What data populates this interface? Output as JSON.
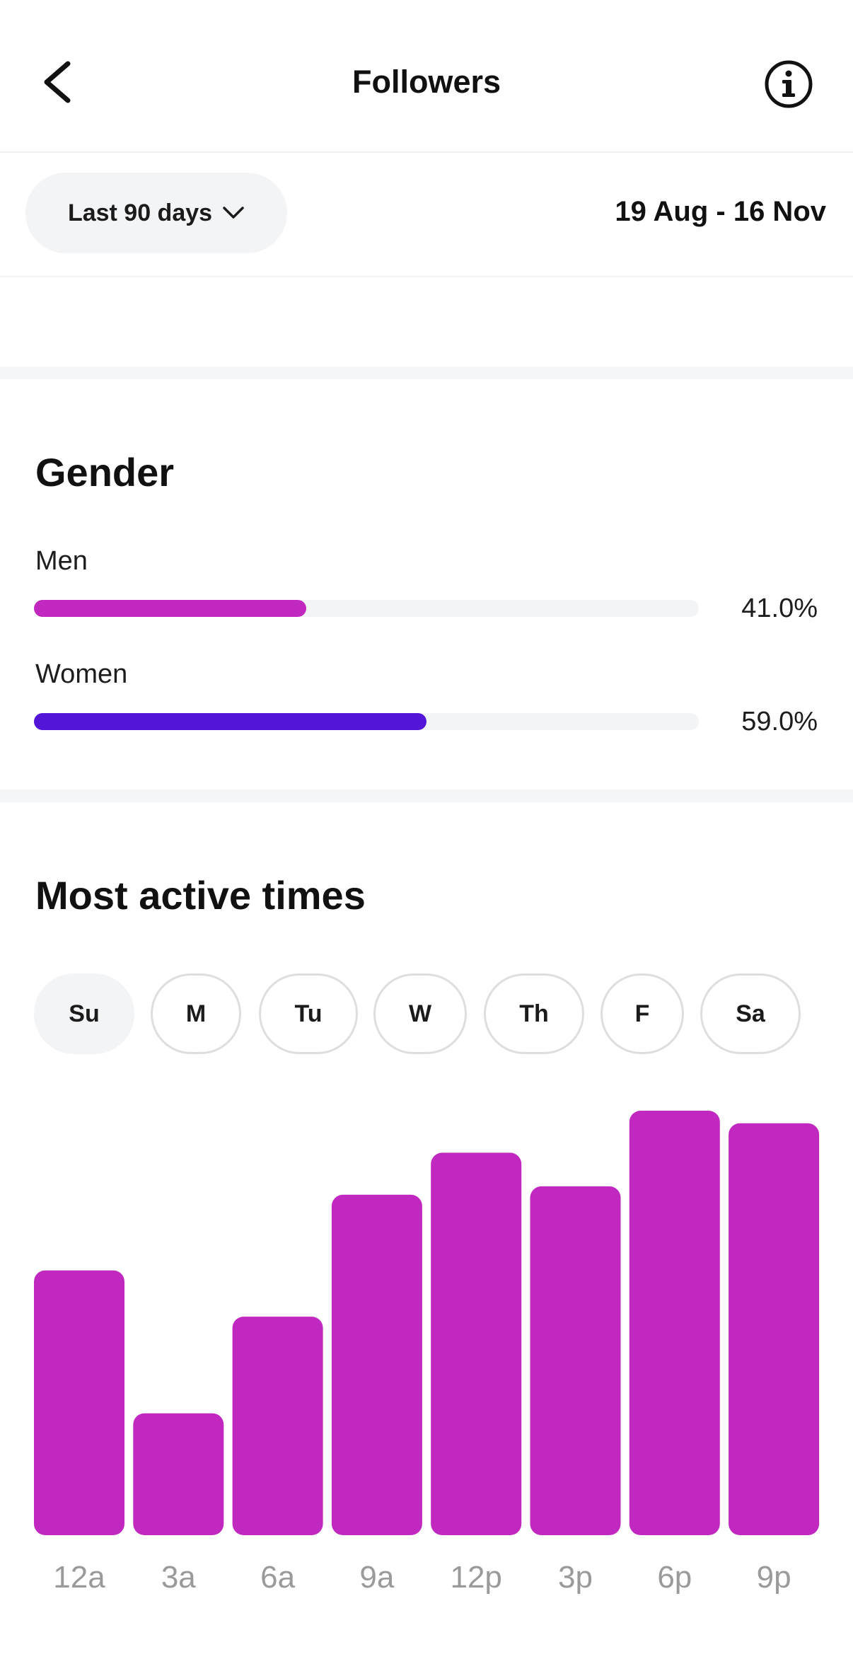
{
  "header": {
    "title": "Followers",
    "back_icon": "back-arrow-icon",
    "info_icon": "info-icon"
  },
  "filter": {
    "range_label": "Last 90 days",
    "date_range": "19 Aug - 16 Nov"
  },
  "gender": {
    "title": "Gender",
    "items": [
      {
        "label": "Men",
        "percent_text": "41.0%",
        "value": 41.0,
        "color": "#c128c0"
      },
      {
        "label": "Women",
        "percent_text": "59.0%",
        "value": 59.0,
        "color": "#5316d8"
      }
    ]
  },
  "active_times": {
    "title": "Most active times",
    "days": [
      "Su",
      "M",
      "Tu",
      "W",
      "Th",
      "F",
      "Sa"
    ],
    "selected_day": "Su"
  },
  "chart_data": {
    "type": "bar",
    "title": "Most active times",
    "categories": [
      "12a",
      "3a",
      "6a",
      "9a",
      "12p",
      "3p",
      "6p",
      "9p"
    ],
    "values": [
      63,
      29,
      52,
      81,
      91,
      83,
      101,
      98
    ],
    "ylim": [
      0,
      101
    ],
    "grid": false,
    "color": "#c128c0"
  },
  "colors": {
    "accent_magenta": "#c128c0",
    "accent_purple": "#5316d8",
    "track": "#f3f4f6",
    "tick_label": "#9a9a9a"
  }
}
